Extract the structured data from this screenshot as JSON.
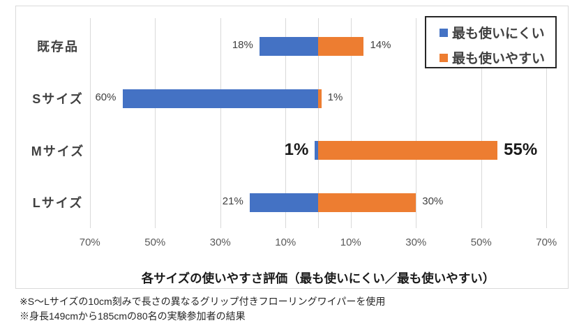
{
  "chart_data": {
    "type": "bar",
    "orientation": "diverging-horizontal",
    "title": "各サイズの使いやすさ評価（最も使いにくい／最も使いやすい）",
    "categories": [
      "既存品",
      "Sサイズ",
      "Mサイズ",
      "Lサイズ"
    ],
    "series": [
      {
        "name": "最も使いにくい",
        "color": "#4472C4",
        "direction": "left",
        "values": [
          18,
          60,
          1,
          21
        ]
      },
      {
        "name": "最も使いやすい",
        "color": "#ED7D31",
        "direction": "right",
        "values": [
          14,
          1,
          55,
          30
        ]
      }
    ],
    "data_labels": {
      "left": [
        "18%",
        "60%",
        "1%",
        "21%"
      ],
      "right": [
        "14%",
        "1%",
        "55%",
        "30%"
      ],
      "emphasized_rows": [
        2
      ]
    },
    "x_tick_labels": [
      "70%",
      "50%",
      "30%",
      "10%",
      "10%",
      "30%",
      "50%",
      "70%"
    ],
    "x_tick_values": [
      -70,
      -50,
      -30,
      -10,
      10,
      30,
      50,
      70
    ],
    "gridlines": true,
    "legend_position": "top-right"
  },
  "legend": {
    "items": [
      {
        "label": "最も使いにくい",
        "color": "#4472C4"
      },
      {
        "label": "最も使いやすい",
        "color": "#ED7D31"
      }
    ]
  },
  "footnotes": [
    "※S～Lサイズの10cm刻みで長さの異なるグリップ付きフローリングワイパーを使用",
    "※身長149cmから185cmの80名の実験参加者の結果"
  ],
  "colors": {
    "bar_negative": "#4472C4",
    "bar_positive": "#ED7D31",
    "gridline": "#d9d9d9",
    "frame_border": "#d9d9d9",
    "text": "#404040"
  }
}
